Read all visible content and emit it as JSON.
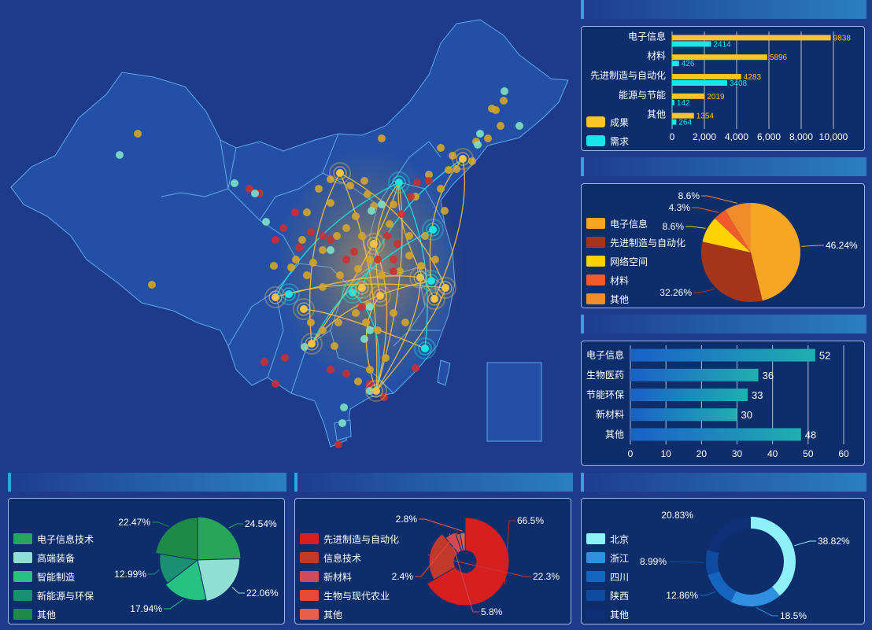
{
  "map": {
    "colors": {
      "bg": "#1e3a8a",
      "province": "#2350a6",
      "border": "#5fa9e8",
      "flow": "#f5c142",
      "hub": "#19e6e0",
      "dot_gold": "#d4a52a",
      "dot_red": "#d22d2d",
      "dot_mint": "#7fe0c4"
    }
  },
  "chart_data": [
    {
      "id": "achievement_demand",
      "type": "bar",
      "orientation": "horizontal",
      "categories": [
        "电子信息",
        "材料",
        "先进制造与自动化",
        "能源与节能",
        "其他"
      ],
      "series": [
        {
          "name": "成果",
          "color": "#f9c527",
          "values": [
            9838,
            5896,
            4283,
            2019,
            1354
          ]
        },
        {
          "name": "需求",
          "color": "#19e6e6",
          "values": [
            2414,
            426,
            3408,
            142,
            264
          ]
        }
      ],
      "xlim": [
        0,
        10000
      ],
      "xticks": [
        "0",
        "2,000",
        "4,000",
        "6,000",
        "8,000",
        "10,000"
      ],
      "legend": "bottom-left"
    },
    {
      "id": "pie_tech_fields",
      "type": "pie",
      "slices": [
        {
          "name": "电子信息",
          "value": 46.24,
          "label": "46.24%",
          "color": "#f5a623"
        },
        {
          "name": "先进制造与自动化",
          "value": 32.26,
          "label": "32.26%",
          "color": "#a6341a"
        },
        {
          "name": "网络空间",
          "value": 8.6,
          "label": "8.6%",
          "color": "#ffd200"
        },
        {
          "name": "材料",
          "value": 4.3,
          "label": "4.3%",
          "color": "#f15a2b"
        },
        {
          "name": "其他",
          "value": 8.6,
          "label": "8.6%",
          "color": "#f08c2a"
        }
      ],
      "legend": "left"
    },
    {
      "id": "bar_field_counts",
      "type": "bar",
      "orientation": "horizontal",
      "categories": [
        "电子信息",
        "生物医药",
        "节能环保",
        "新材料",
        "其他"
      ],
      "values": [
        52,
        36,
        33,
        30,
        48
      ],
      "labels": [
        "52",
        "36",
        "33",
        "30",
        "48"
      ],
      "xlim": [
        0,
        60
      ],
      "xticks": [
        "0",
        "10",
        "20",
        "30",
        "40",
        "50",
        "60"
      ],
      "colors": {
        "from": "#1a5fc9",
        "to": "#1fb0b0"
      }
    },
    {
      "id": "rose_1",
      "type": "pie",
      "variant": "rose",
      "slices": [
        {
          "name": "电子信息技术",
          "value": 24.54,
          "label": "24.54%",
          "color": "#27a65a"
        },
        {
          "name": "高端装备",
          "value": 22.06,
          "label": "22.06%",
          "color": "#8fe0d2"
        },
        {
          "name": "智能制造",
          "value": 17.94,
          "label": "17.94%",
          "color": "#26c281"
        },
        {
          "name": "新能源与环保",
          "value": 12.99,
          "label": "12.99%",
          "color": "#1a9070"
        },
        {
          "name": "其他",
          "value": 22.47,
          "label": "22.47%",
          "color": "#1e8a48"
        }
      ],
      "legend": "left"
    },
    {
      "id": "rose_2",
      "type": "pie",
      "variant": "rose",
      "slices": [
        {
          "name": "先进制造与自动化",
          "value": 66.5,
          "label": "66.5%",
          "color": "#d81f1f"
        },
        {
          "name": "信息技术",
          "value": 22.3,
          "label": "22.3%",
          "color": "#c0392b"
        },
        {
          "name": "新材料",
          "value": 5.8,
          "label": "5.8%",
          "color": "#cf4b5a"
        },
        {
          "name": "生物与现代农业",
          "value": 2.4,
          "label": "2.4%",
          "color": "#e64a3c"
        },
        {
          "name": "其他",
          "value": 2.8,
          "label": "2.8%",
          "color": "#e8604c"
        }
      ],
      "legend": "left"
    },
    {
      "id": "donut_regions",
      "type": "pie",
      "variant": "donut",
      "slices": [
        {
          "name": "北京",
          "value": 38.82,
          "label": "38.82%",
          "color": "#8ff1f8"
        },
        {
          "name": "浙江",
          "value": 18.5,
          "label": "18.5%",
          "color": "#2f8fe0"
        },
        {
          "name": "四川",
          "value": 12.86,
          "label": "12.86%",
          "color": "#1565c0"
        },
        {
          "name": "陕西",
          "value": 8.99,
          "label": "8.99%",
          "color": "#0e4aa0"
        },
        {
          "name": "其他",
          "value": 20.83,
          "label": "20.83%",
          "color": "#0c2f78"
        }
      ],
      "legend": "left"
    }
  ]
}
